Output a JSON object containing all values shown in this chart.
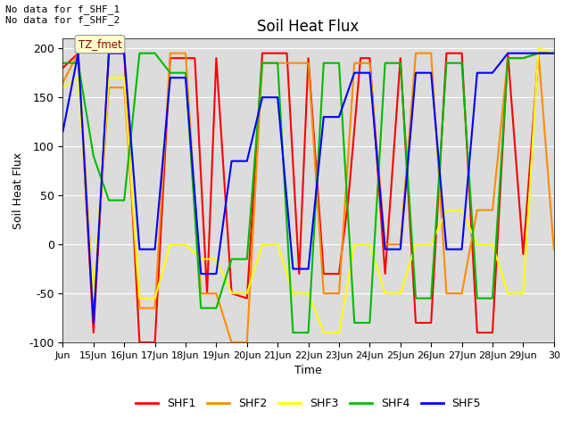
{
  "title": "Soil Heat Flux",
  "ylabel": "Soil Heat Flux",
  "xlabel": "Time",
  "ylim": [
    -100,
    210
  ],
  "yticks": [
    -100,
    -50,
    0,
    50,
    100,
    150,
    200
  ],
  "background_color": "#dcdcdc",
  "annotation_text": "No data for f_SHF_1\nNo data for f_SHF_2",
  "tz_label": "TZ_fmet",
  "series_order": [
    "SHF1",
    "SHF2",
    "SHF3",
    "SHF4",
    "SHF5"
  ],
  "series_colors": {
    "SHF1": "#ff0000",
    "SHF2": "#ff8c00",
    "SHF3": "#ffff00",
    "SHF4": "#00bb00",
    "SHF5": "#0000ff"
  },
  "xtick_labels": [
    "Jun",
    "15Jun",
    "16Jun",
    "17Jun",
    "18Jun",
    "19Jun",
    "20Jun",
    "21Jun",
    "22Jun",
    "23Jun",
    "24Jun",
    "25Jun",
    "26Jun",
    "27Jun",
    "28Jun",
    "29Jun",
    "30"
  ],
  "SHF1_x": [
    0,
    0.5,
    1,
    1.5,
    2,
    2.5,
    3,
    3.5,
    4,
    4.3,
    4.7,
    5,
    5.5,
    6,
    6.5,
    7,
    7.3,
    7.7,
    8,
    8.5,
    9,
    9.3,
    9.7,
    10,
    10.5,
    11,
    11.5,
    12,
    12.5,
    13,
    13.5,
    14,
    14.5,
    15,
    15.5,
    16
  ],
  "SHF1_y": [
    180,
    195,
    -90,
    195,
    195,
    -100,
    -100,
    190,
    190,
    190,
    -50,
    190,
    -50,
    -55,
    195,
    195,
    195,
    -30,
    190,
    -30,
    -30,
    45,
    190,
    190,
    -30,
    190,
    -80,
    -80,
    195,
    195,
    -90,
    -90,
    195,
    -10,
    195,
    195
  ],
  "SHF2_x": [
    0,
    0.5,
    1,
    1.5,
    2,
    2.5,
    3,
    3.5,
    4,
    4.5,
    5,
    5.5,
    6,
    6.5,
    7,
    7.5,
    8,
    8.5,
    9,
    9.5,
    10,
    10.5,
    11,
    11.5,
    12,
    12.5,
    13,
    13.5,
    14,
    14.5,
    15,
    15.5,
    16
  ],
  "SHF2_y": [
    165,
    195,
    -60,
    160,
    160,
    -65,
    -65,
    195,
    195,
    -50,
    -50,
    -100,
    -100,
    185,
    185,
    185,
    185,
    -50,
    -50,
    185,
    185,
    0,
    0,
    195,
    195,
    -50,
    -50,
    35,
    35,
    190,
    190,
    195,
    -5
  ],
  "SHF3_x": [
    0,
    0.5,
    1,
    1.5,
    2,
    2.5,
    3,
    3.5,
    4,
    4.5,
    5,
    5.5,
    6,
    6.5,
    7,
    7.5,
    8,
    8.5,
    9,
    9.5,
    10,
    10.5,
    11,
    11.5,
    12,
    12.5,
    13,
    13.5,
    14,
    14.5,
    15,
    15.5,
    16
  ],
  "SHF3_y": [
    160,
    170,
    -55,
    170,
    170,
    -55,
    -55,
    0,
    0,
    -15,
    -15,
    -50,
    -50,
    0,
    0,
    -50,
    -50,
    -90,
    -90,
    0,
    0,
    -50,
    -50,
    0,
    0,
    35,
    35,
    0,
    0,
    -50,
    -50,
    200,
    195
  ],
  "SHF4_x": [
    0,
    0.5,
    1,
    1.5,
    2,
    2.5,
    3,
    3.5,
    4,
    4.5,
    5,
    5.5,
    6,
    6.5,
    7,
    7.5,
    8,
    8.5,
    9,
    9.5,
    10,
    10.5,
    11,
    11.5,
    12,
    12.5,
    13,
    13.5,
    14,
    14.5,
    15,
    15.5,
    16
  ],
  "SHF4_y": [
    185,
    185,
    90,
    45,
    45,
    195,
    195,
    175,
    175,
    -65,
    -65,
    -15,
    -15,
    185,
    185,
    -90,
    -90,
    185,
    185,
    -80,
    -80,
    185,
    185,
    -55,
    -55,
    185,
    185,
    -55,
    -55,
    190,
    190,
    195,
    195
  ],
  "SHF5_x": [
    0,
    0.5,
    1,
    1.5,
    2,
    2.5,
    3,
    3.5,
    4,
    4.5,
    5,
    5.5,
    6,
    6.5,
    7,
    7.5,
    8,
    8.5,
    9,
    9.5,
    10,
    10.5,
    11,
    11.5,
    12,
    12.5,
    13,
    13.5,
    14,
    14.5,
    15,
    15.5,
    16
  ],
  "SHF5_y": [
    115,
    195,
    -80,
    195,
    195,
    -5,
    -5,
    170,
    170,
    -30,
    -30,
    85,
    85,
    150,
    150,
    -25,
    -25,
    130,
    130,
    175,
    175,
    -5,
    -5,
    175,
    175,
    -5,
    -5,
    175,
    175,
    195,
    195,
    195,
    195
  ]
}
